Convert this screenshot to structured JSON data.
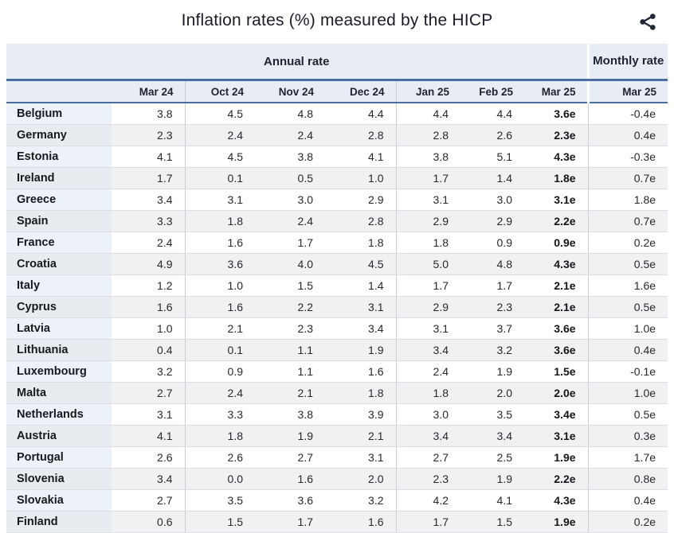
{
  "title": "Inflation rates (%) measured by the HICP",
  "share": {
    "icon": "share-icon"
  },
  "colors": {
    "accent_border": "#4a6d9f",
    "header_bg": "#e8ecf4",
    "country_col_bg": "#edf1f8",
    "stripe_bg": "#f0f1f3",
    "icon_color": "#222838"
  },
  "table": {
    "group_headers": {
      "annual": "Annual rate",
      "monthly": "Monthly rate"
    },
    "columns": [
      "Mar 24",
      "Oct 24",
      "Nov 24",
      "Dec 24",
      "Jan 25",
      "Feb 25",
      "Mar 25"
    ],
    "monthly_column": "Mar 25",
    "rows": [
      {
        "country": "Belgium",
        "annual": [
          "3.8",
          "4.5",
          "4.8",
          "4.4",
          "4.4",
          "4.4",
          "3.6e"
        ],
        "monthly": "-0.4e"
      },
      {
        "country": "Germany",
        "annual": [
          "2.3",
          "2.4",
          "2.4",
          "2.8",
          "2.8",
          "2.6",
          "2.3e"
        ],
        "monthly": "0.4e"
      },
      {
        "country": "Estonia",
        "annual": [
          "4.1",
          "4.5",
          "3.8",
          "4.1",
          "3.8",
          "5.1",
          "4.3e"
        ],
        "monthly": "-0.3e"
      },
      {
        "country": "Ireland",
        "annual": [
          "1.7",
          "0.1",
          "0.5",
          "1.0",
          "1.7",
          "1.4",
          "1.8e"
        ],
        "monthly": "0.7e"
      },
      {
        "country": "Greece",
        "annual": [
          "3.4",
          "3.1",
          "3.0",
          "2.9",
          "3.1",
          "3.0",
          "3.1e"
        ],
        "monthly": "1.8e"
      },
      {
        "country": "Spain",
        "annual": [
          "3.3",
          "1.8",
          "2.4",
          "2.8",
          "2.9",
          "2.9",
          "2.2e"
        ],
        "monthly": "0.7e"
      },
      {
        "country": "France",
        "annual": [
          "2.4",
          "1.6",
          "1.7",
          "1.8",
          "1.8",
          "0.9",
          "0.9e"
        ],
        "monthly": "0.2e"
      },
      {
        "country": "Croatia",
        "annual": [
          "4.9",
          "3.6",
          "4.0",
          "4.5",
          "5.0",
          "4.8",
          "4.3e"
        ],
        "monthly": "0.5e"
      },
      {
        "country": "Italy",
        "annual": [
          "1.2",
          "1.0",
          "1.5",
          "1.4",
          "1.7",
          "1.7",
          "2.1e"
        ],
        "monthly": "1.6e"
      },
      {
        "country": "Cyprus",
        "annual": [
          "1.6",
          "1.6",
          "2.2",
          "3.1",
          "2.9",
          "2.3",
          "2.1e"
        ],
        "monthly": "0.5e"
      },
      {
        "country": "Latvia",
        "annual": [
          "1.0",
          "2.1",
          "2.3",
          "3.4",
          "3.1",
          "3.7",
          "3.6e"
        ],
        "monthly": "1.0e"
      },
      {
        "country": "Lithuania",
        "annual": [
          "0.4",
          "0.1",
          "1.1",
          "1.9",
          "3.4",
          "3.2",
          "3.6e"
        ],
        "monthly": "0.4e"
      },
      {
        "country": "Luxembourg",
        "annual": [
          "3.2",
          "0.9",
          "1.1",
          "1.6",
          "2.4",
          "1.9",
          "1.5e"
        ],
        "monthly": "-0.1e"
      },
      {
        "country": "Malta",
        "annual": [
          "2.7",
          "2.4",
          "2.1",
          "1.8",
          "1.8",
          "2.0",
          "2.0e"
        ],
        "monthly": "1.0e"
      },
      {
        "country": "Netherlands",
        "annual": [
          "3.1",
          "3.3",
          "3.8",
          "3.9",
          "3.0",
          "3.5",
          "3.4e"
        ],
        "monthly": "0.5e"
      },
      {
        "country": "Austria",
        "annual": [
          "4.1",
          "1.8",
          "1.9",
          "2.1",
          "3.4",
          "3.4",
          "3.1e"
        ],
        "monthly": "0.3e"
      },
      {
        "country": "Portugal",
        "annual": [
          "2.6",
          "2.6",
          "2.7",
          "3.1",
          "2.7",
          "2.5",
          "1.9e"
        ],
        "monthly": "1.7e"
      },
      {
        "country": "Slovenia",
        "annual": [
          "3.4",
          "0.0",
          "1.6",
          "2.0",
          "2.3",
          "1.9",
          "2.2e"
        ],
        "monthly": "0.8e"
      },
      {
        "country": "Slovakia",
        "annual": [
          "2.7",
          "3.5",
          "3.6",
          "3.2",
          "4.2",
          "4.1",
          "4.3e"
        ],
        "monthly": "0.4e"
      },
      {
        "country": "Finland",
        "annual": [
          "0.6",
          "1.5",
          "1.7",
          "1.6",
          "1.7",
          "1.5",
          "1.9e"
        ],
        "monthly": "0.2e"
      }
    ]
  }
}
